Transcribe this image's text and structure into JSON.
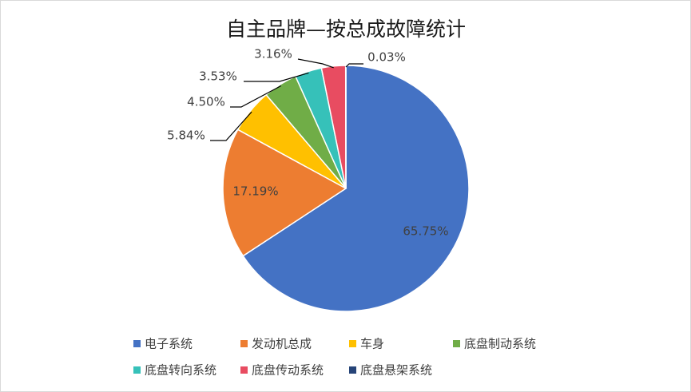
{
  "chart_data": {
    "type": "pie",
    "title": "自主品牌—按总成故障统计",
    "categories": [
      "电子系统",
      "发动机总成",
      "车身",
      "底盘制动系统",
      "底盘转向系统",
      "底盘传动系统",
      "底盘悬架系统"
    ],
    "values": [
      65.75,
      17.19,
      5.84,
      4.5,
      3.53,
      3.16,
      0.03
    ],
    "value_labels": [
      "65.75%",
      "17.19%",
      "5.84%",
      "4.50%",
      "3.53%",
      "3.16%",
      "0.03%"
    ],
    "colors": [
      "#4472c4",
      "#ed7d31",
      "#ffc000",
      "#70ad47",
      "#36c1b9",
      "#e84c61",
      "#264478"
    ],
    "legend": "bottom"
  }
}
